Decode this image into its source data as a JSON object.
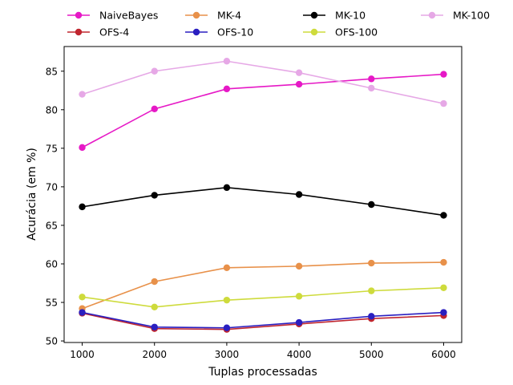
{
  "chart_data": {
    "type": "line",
    "title": "",
    "xlabel": "Tuplas processadas",
    "ylabel": "Acurácia (em %)",
    "x": [
      1000,
      2000,
      3000,
      4000,
      5000,
      6000
    ],
    "xticks": [
      1000,
      2000,
      3000,
      4000,
      5000,
      6000
    ],
    "yticks": [
      50,
      55,
      60,
      65,
      70,
      75,
      80,
      85
    ],
    "xlim": [
      750,
      6250
    ],
    "ylim": [
      49.8,
      88.2
    ],
    "grid": false,
    "legend_position": "top-outside",
    "series": [
      {
        "name": "NaiveBayes",
        "color": "#e619c6",
        "values": [
          75.1,
          80.1,
          82.7,
          83.3,
          84.0,
          84.6
        ]
      },
      {
        "name": "MK-4",
        "color": "#e8914a",
        "values": [
          54.2,
          57.7,
          59.5,
          59.7,
          60.1,
          60.2
        ]
      },
      {
        "name": "MK-10",
        "color": "#000000",
        "values": [
          67.4,
          68.9,
          69.9,
          69.0,
          67.7,
          66.3
        ]
      },
      {
        "name": "MK-100",
        "color": "#e6a8e6",
        "values": [
          82.0,
          85.0,
          86.3,
          84.8,
          82.8,
          80.8
        ]
      },
      {
        "name": "OFS-4",
        "color": "#c0262f",
        "values": [
          53.6,
          51.6,
          51.5,
          52.2,
          52.9,
          53.3
        ]
      },
      {
        "name": "OFS-10",
        "color": "#2a1fc0",
        "values": [
          53.7,
          51.8,
          51.7,
          52.4,
          53.2,
          53.7
        ]
      },
      {
        "name": "OFS-100",
        "color": "#cedb3c",
        "values": [
          55.7,
          54.4,
          55.3,
          55.8,
          56.5,
          56.9
        ]
      }
    ]
  }
}
